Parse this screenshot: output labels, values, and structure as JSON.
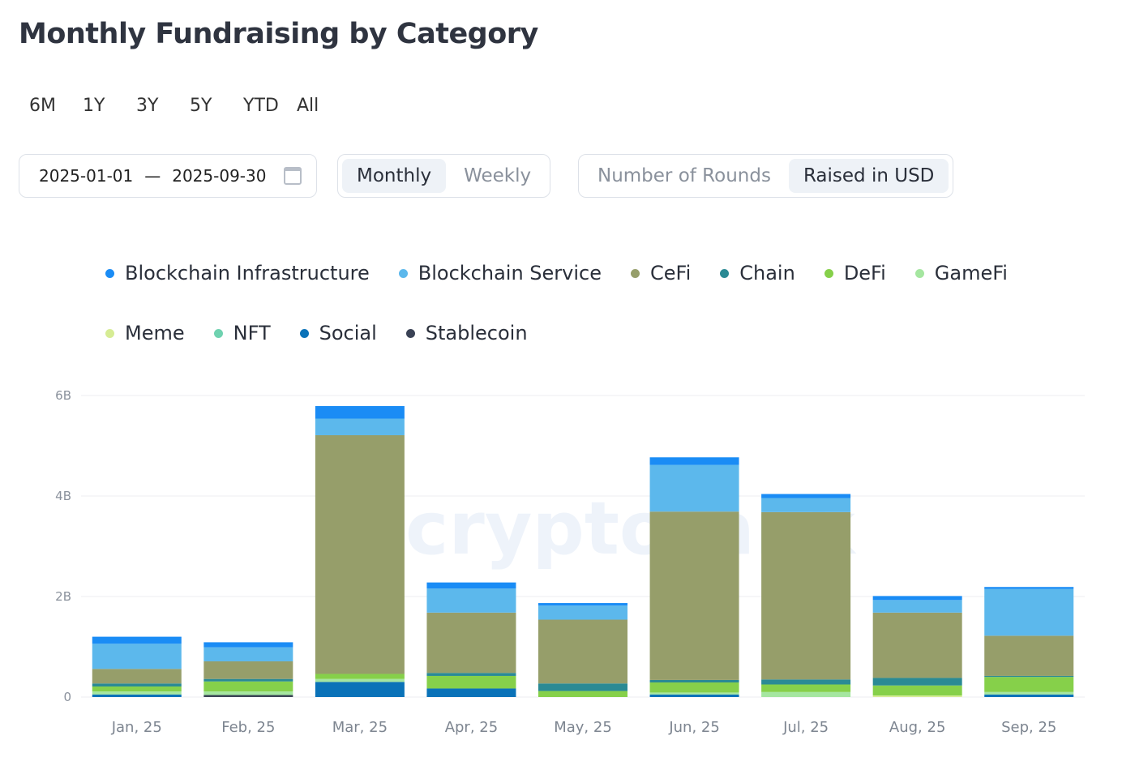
{
  "title": "Monthly Fundraising by Category",
  "ranges": [
    "6M",
    "1Y",
    "3Y",
    "5Y",
    "YTD",
    "All"
  ],
  "date_range": {
    "start": "2025-01-01",
    "sep": "—",
    "end": "2025-09-30",
    "icon": "calendar-icon"
  },
  "interval": {
    "options": [
      "Monthly",
      "Weekly"
    ],
    "selected": "Monthly"
  },
  "metric": {
    "options": [
      "Number of Rounds",
      "Raised in USD"
    ],
    "selected": "Raised in USD"
  },
  "watermark": "cryptorank",
  "chart_data": {
    "type": "bar",
    "stacked": true,
    "legend": "top",
    "grid": true,
    "ylim": [
      0,
      6
    ],
    "yticks": [
      "0",
      "2B",
      "4B",
      "6B"
    ],
    "ytick_values": [
      0,
      2,
      4,
      6
    ],
    "unit": "B USD",
    "categories": [
      "Jan, 25",
      "Feb, 25",
      "Mar, 25",
      "Apr, 25",
      "May, 25",
      "Jun, 25",
      "Jul, 25",
      "Aug, 25",
      "Sep, 25"
    ],
    "series": [
      {
        "name": "Blockchain Infrastructure",
        "color": "#1a8cf5",
        "values": [
          0.14,
          0.1,
          0.25,
          0.12,
          0.05,
          0.15,
          0.08,
          0.08,
          0.04
        ]
      },
      {
        "name": "Blockchain Service",
        "color": "#5cb8ec",
        "values": [
          0.5,
          0.28,
          0.33,
          0.48,
          0.28,
          0.93,
          0.28,
          0.25,
          0.93
        ]
      },
      {
        "name": "CeFi",
        "color": "#969e6a",
        "values": [
          0.29,
          0.35,
          4.75,
          1.2,
          1.27,
          3.35,
          3.33,
          1.3,
          0.8
        ]
      },
      {
        "name": "Chain",
        "color": "#2a8a94",
        "values": [
          0.06,
          0.05,
          0,
          0.06,
          0.15,
          0.05,
          0.1,
          0.15,
          0.02
        ]
      },
      {
        "name": "DeFi",
        "color": "#86d04a",
        "values": [
          0.1,
          0.2,
          0.1,
          0.25,
          0.12,
          0.2,
          0.15,
          0.2,
          0.3
        ]
      },
      {
        "name": "GameFi",
        "color": "#a5e6a0",
        "values": [
          0.06,
          0.07,
          0.06,
          0,
          0,
          0.04,
          0.1,
          0,
          0.05
        ]
      },
      {
        "name": "Meme",
        "color": "#d6ec94",
        "values": [
          0,
          0,
          0,
          0,
          0,
          0,
          0,
          0.03,
          0
        ]
      },
      {
        "name": "NFT",
        "color": "#6fd2b0",
        "values": [
          0,
          0,
          0,
          0,
          0,
          0,
          0,
          0,
          0
        ]
      },
      {
        "name": "Social",
        "color": "#0a72b8",
        "values": [
          0.05,
          0,
          0.3,
          0.17,
          0,
          0.05,
          0,
          0,
          0.05
        ]
      },
      {
        "name": "Stablecoin",
        "color": "#3a4255",
        "values": [
          0,
          0.04,
          0,
          0,
          0,
          0,
          0,
          0,
          0
        ]
      }
    ]
  }
}
